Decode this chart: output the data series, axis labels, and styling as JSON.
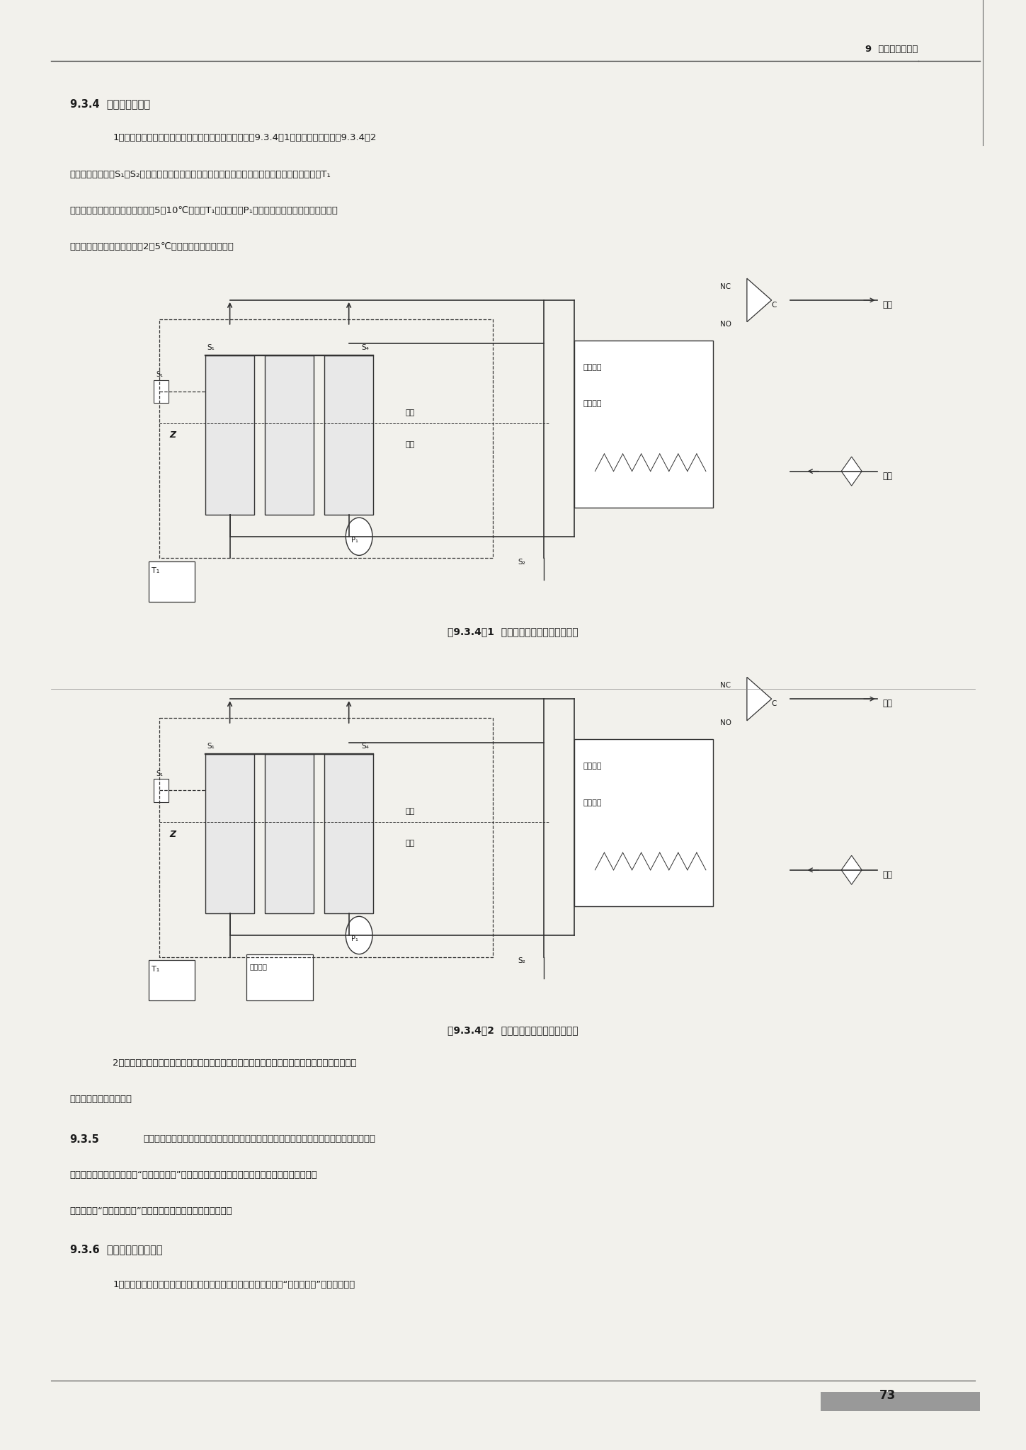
{
  "page_width": 14.49,
  "page_height": 20.48,
  "bg_color": "#f2f1ec",
  "text_color": "#1a1a1a",
  "header_text": "9  太阳能供暖系统",
  "footer_page": "73",
  "section_934": "9.3.4  系统运行控制。",
  "para1_line1": "1．太阳能集热系统的运行采用温差控制；直接系统如图9.3.4－1所示，间接系统如图9.3.4－2",
  "para1_line2": "所示。温度控制器S₁和S₂分别设置在水笱底部和集热系统出水口，温度传感器的信号传送到控制器T₁",
  "para1_line3": "中，当二者温差大于某一设定値（5～10℃）时，T₁控制循环泵P₁开启而将集热系统的热量传输到水",
  "para1_line4": "笱；当二者温差小于设定値（2～5℃）时，循环泵停止工作。",
  "fig1_caption": "图9.3.4－1  直接系统温差循环控制系统图",
  "fig2_caption": "图9.3.4－2  间接系统温差循环控制系统图",
  "para2_line1": "2．控制器中的温差设置应根据系统的实际设计工况调节，间接系统取上限，直接系统取下限，且",
  "para2_line2": "应避免水泵的频繁启停。",
  "section_935_head": "9.3.5",
  "section_935_text": "太阳能集热器和辅助热源之间的工作切换采用温度控制。通过温度传感器感应贯热装置中的供",
  "section_935_line2": "热工质温度，工质温度低于“设计供热温度”时，信号通过控制器控制辅助加热设备启动工作；待工",
  "section_935_line3": "质温度高于“设计供热温度”后，再控制辅助加热设备停止工作。",
  "section_936_head": "9.3.6  系统防冻保护控制。",
  "section_936_line1": "1．以水为工质的太阳能集热系统实施防冻时，需在系统中加设一个“排回贯水笱”，用以贯存防"
}
